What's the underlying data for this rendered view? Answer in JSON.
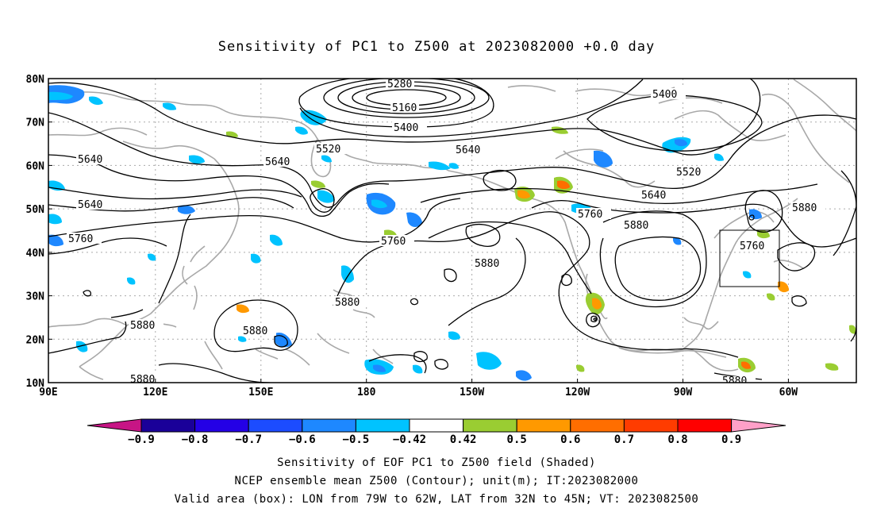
{
  "title": "Sensitivity of PC1 to Z500 at 2023082000 +0.0 day",
  "lat_labels": [
    "80N",
    "70N",
    "60N",
    "50N",
    "40N",
    "30N",
    "20N",
    "10N"
  ],
  "lon_labels": [
    "90E",
    "120E",
    "150E",
    "180",
    "150W",
    "120W",
    "90W",
    "60W"
  ],
  "contour_labels": {
    "c5280": "5280",
    "c5160": "5160",
    "c5400a": "5400",
    "c5400b": "5400",
    "c5520a": "5520",
    "c5520b": "5520",
    "c5640a": "5640",
    "c5640b": "5640",
    "c5640c": "5640",
    "c5640d": "5640",
    "c5640e": "5640",
    "c5760a": "5760",
    "c5760b": "5760",
    "c5760c": "5760",
    "c5760d": "5760",
    "c5880a": "5880",
    "c5880b": "5880",
    "c5880c": "5880",
    "c5880d": "5880",
    "c5880e": "5880",
    "c5880f": "5880",
    "c5880g": "5880",
    "c5880h": "5880"
  },
  "colorbar": {
    "labels": [
      "−0.9",
      "−0.8",
      "−0.7",
      "−0.6",
      "−0.5",
      "−0.42",
      "0.42",
      "0.5",
      "0.6",
      "0.7",
      "0.8",
      "0.9"
    ],
    "colors": [
      "#1a0099",
      "#2400e6",
      "#1c4cff",
      "#1e88ff",
      "#00c3ff",
      "#ffffff",
      "#9acd32",
      "#ff9900",
      "#ff6e00",
      "#ff3c00",
      "#ff0000"
    ],
    "low_arrow_color": "#c71585",
    "high_arrow_color": "#ffa0c8"
  },
  "validity_box": {
    "lon_w": -79,
    "lon_e": -62,
    "lat_s": 32,
    "lat_n": 45
  },
  "captions": {
    "line1": "Sensitivity of EOF PC1 to Z500 field (Shaded)",
    "line2": "NCEP ensemble mean Z500 (Contour); unit(m); IT:2023082000",
    "line3": "Valid area (box): LON from 79W to 62W, LAT from 32N to 45N; VT: 2023082500"
  }
}
